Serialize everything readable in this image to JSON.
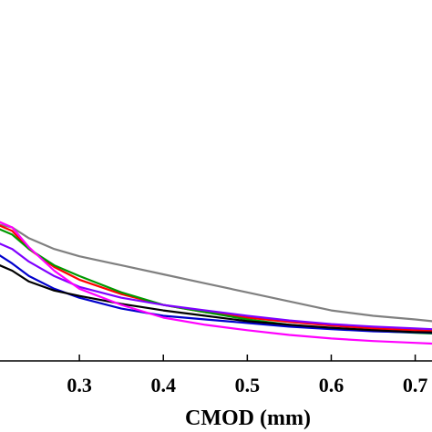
{
  "chart_data": {
    "type": "line",
    "xlabel": "CMOD (mm)",
    "xlim": [
      0.2,
      0.72
    ],
    "ylim": [
      0,
      1
    ],
    "x_ticks": [
      {
        "value": 0.3,
        "label": "0.3"
      },
      {
        "value": 0.4,
        "label": "0.4"
      },
      {
        "value": 0.5,
        "label": "0.5"
      },
      {
        "value": 0.6,
        "label": "0.6"
      },
      {
        "value": 0.7,
        "label": "0.7"
      }
    ],
    "grid": false,
    "series": [
      {
        "color": "#808080",
        "points": [
          [
            0.2,
            0.38
          ],
          [
            0.22,
            0.37
          ],
          [
            0.24,
            0.34
          ],
          [
            0.27,
            0.31
          ],
          [
            0.3,
            0.29
          ],
          [
            0.35,
            0.265
          ],
          [
            0.4,
            0.24
          ],
          [
            0.45,
            0.215
          ],
          [
            0.5,
            0.19
          ],
          [
            0.55,
            0.165
          ],
          [
            0.6,
            0.14
          ],
          [
            0.65,
            0.125
          ],
          [
            0.7,
            0.115
          ],
          [
            0.72,
            0.11
          ]
        ]
      },
      {
        "color": "#ff0000",
        "points": [
          [
            0.2,
            0.38
          ],
          [
            0.22,
            0.36
          ],
          [
            0.24,
            0.31
          ],
          [
            0.27,
            0.26
          ],
          [
            0.3,
            0.225
          ],
          [
            0.35,
            0.185
          ],
          [
            0.4,
            0.155
          ],
          [
            0.45,
            0.135
          ],
          [
            0.5,
            0.12
          ],
          [
            0.55,
            0.108
          ],
          [
            0.6,
            0.098
          ],
          [
            0.65,
            0.09
          ],
          [
            0.7,
            0.085
          ],
          [
            0.72,
            0.083
          ]
        ]
      },
      {
        "color": "#009900",
        "points": [
          [
            0.2,
            0.37
          ],
          [
            0.22,
            0.35
          ],
          [
            0.24,
            0.31
          ],
          [
            0.27,
            0.265
          ],
          [
            0.3,
            0.235
          ],
          [
            0.35,
            0.19
          ],
          [
            0.4,
            0.155
          ],
          [
            0.45,
            0.135
          ],
          [
            0.5,
            0.115
          ],
          [
            0.55,
            0.1
          ],
          [
            0.6,
            0.09
          ],
          [
            0.65,
            0.083
          ],
          [
            0.7,
            0.078
          ],
          [
            0.72,
            0.076
          ]
        ]
      },
      {
        "color": "#7f00ff",
        "points": [
          [
            0.2,
            0.33
          ],
          [
            0.22,
            0.31
          ],
          [
            0.24,
            0.275
          ],
          [
            0.27,
            0.235
          ],
          [
            0.3,
            0.205
          ],
          [
            0.35,
            0.175
          ],
          [
            0.4,
            0.155
          ],
          [
            0.45,
            0.14
          ],
          [
            0.5,
            0.125
          ],
          [
            0.55,
            0.112
          ],
          [
            0.6,
            0.102
          ],
          [
            0.65,
            0.095
          ],
          [
            0.7,
            0.09
          ],
          [
            0.72,
            0.088
          ]
        ]
      },
      {
        "color": "#0000cc",
        "points": [
          [
            0.2,
            0.3
          ],
          [
            0.22,
            0.27
          ],
          [
            0.24,
            0.235
          ],
          [
            0.27,
            0.2
          ],
          [
            0.3,
            0.175
          ],
          [
            0.35,
            0.145
          ],
          [
            0.4,
            0.125
          ],
          [
            0.45,
            0.115
          ],
          [
            0.5,
            0.105
          ],
          [
            0.55,
            0.095
          ],
          [
            0.6,
            0.088
          ],
          [
            0.65,
            0.082
          ],
          [
            0.7,
            0.079
          ],
          [
            0.72,
            0.078
          ]
        ]
      },
      {
        "color": "#000000",
        "points": [
          [
            0.2,
            0.27
          ],
          [
            0.22,
            0.25
          ],
          [
            0.24,
            0.22
          ],
          [
            0.27,
            0.195
          ],
          [
            0.3,
            0.18
          ],
          [
            0.35,
            0.158
          ],
          [
            0.4,
            0.14
          ],
          [
            0.45,
            0.125
          ],
          [
            0.5,
            0.11
          ],
          [
            0.55,
            0.1
          ],
          [
            0.6,
            0.092
          ],
          [
            0.65,
            0.085
          ],
          [
            0.7,
            0.08
          ],
          [
            0.72,
            0.079
          ]
        ]
      },
      {
        "color": "#ff00ff",
        "points": [
          [
            0.2,
            0.39
          ],
          [
            0.22,
            0.37
          ],
          [
            0.24,
            0.315
          ],
          [
            0.27,
            0.25
          ],
          [
            0.3,
            0.2
          ],
          [
            0.35,
            0.155
          ],
          [
            0.4,
            0.12
          ],
          [
            0.45,
            0.1
          ],
          [
            0.5,
            0.085
          ],
          [
            0.55,
            0.072
          ],
          [
            0.6,
            0.062
          ],
          [
            0.65,
            0.055
          ],
          [
            0.7,
            0.05
          ],
          [
            0.72,
            0.048
          ]
        ]
      }
    ]
  }
}
